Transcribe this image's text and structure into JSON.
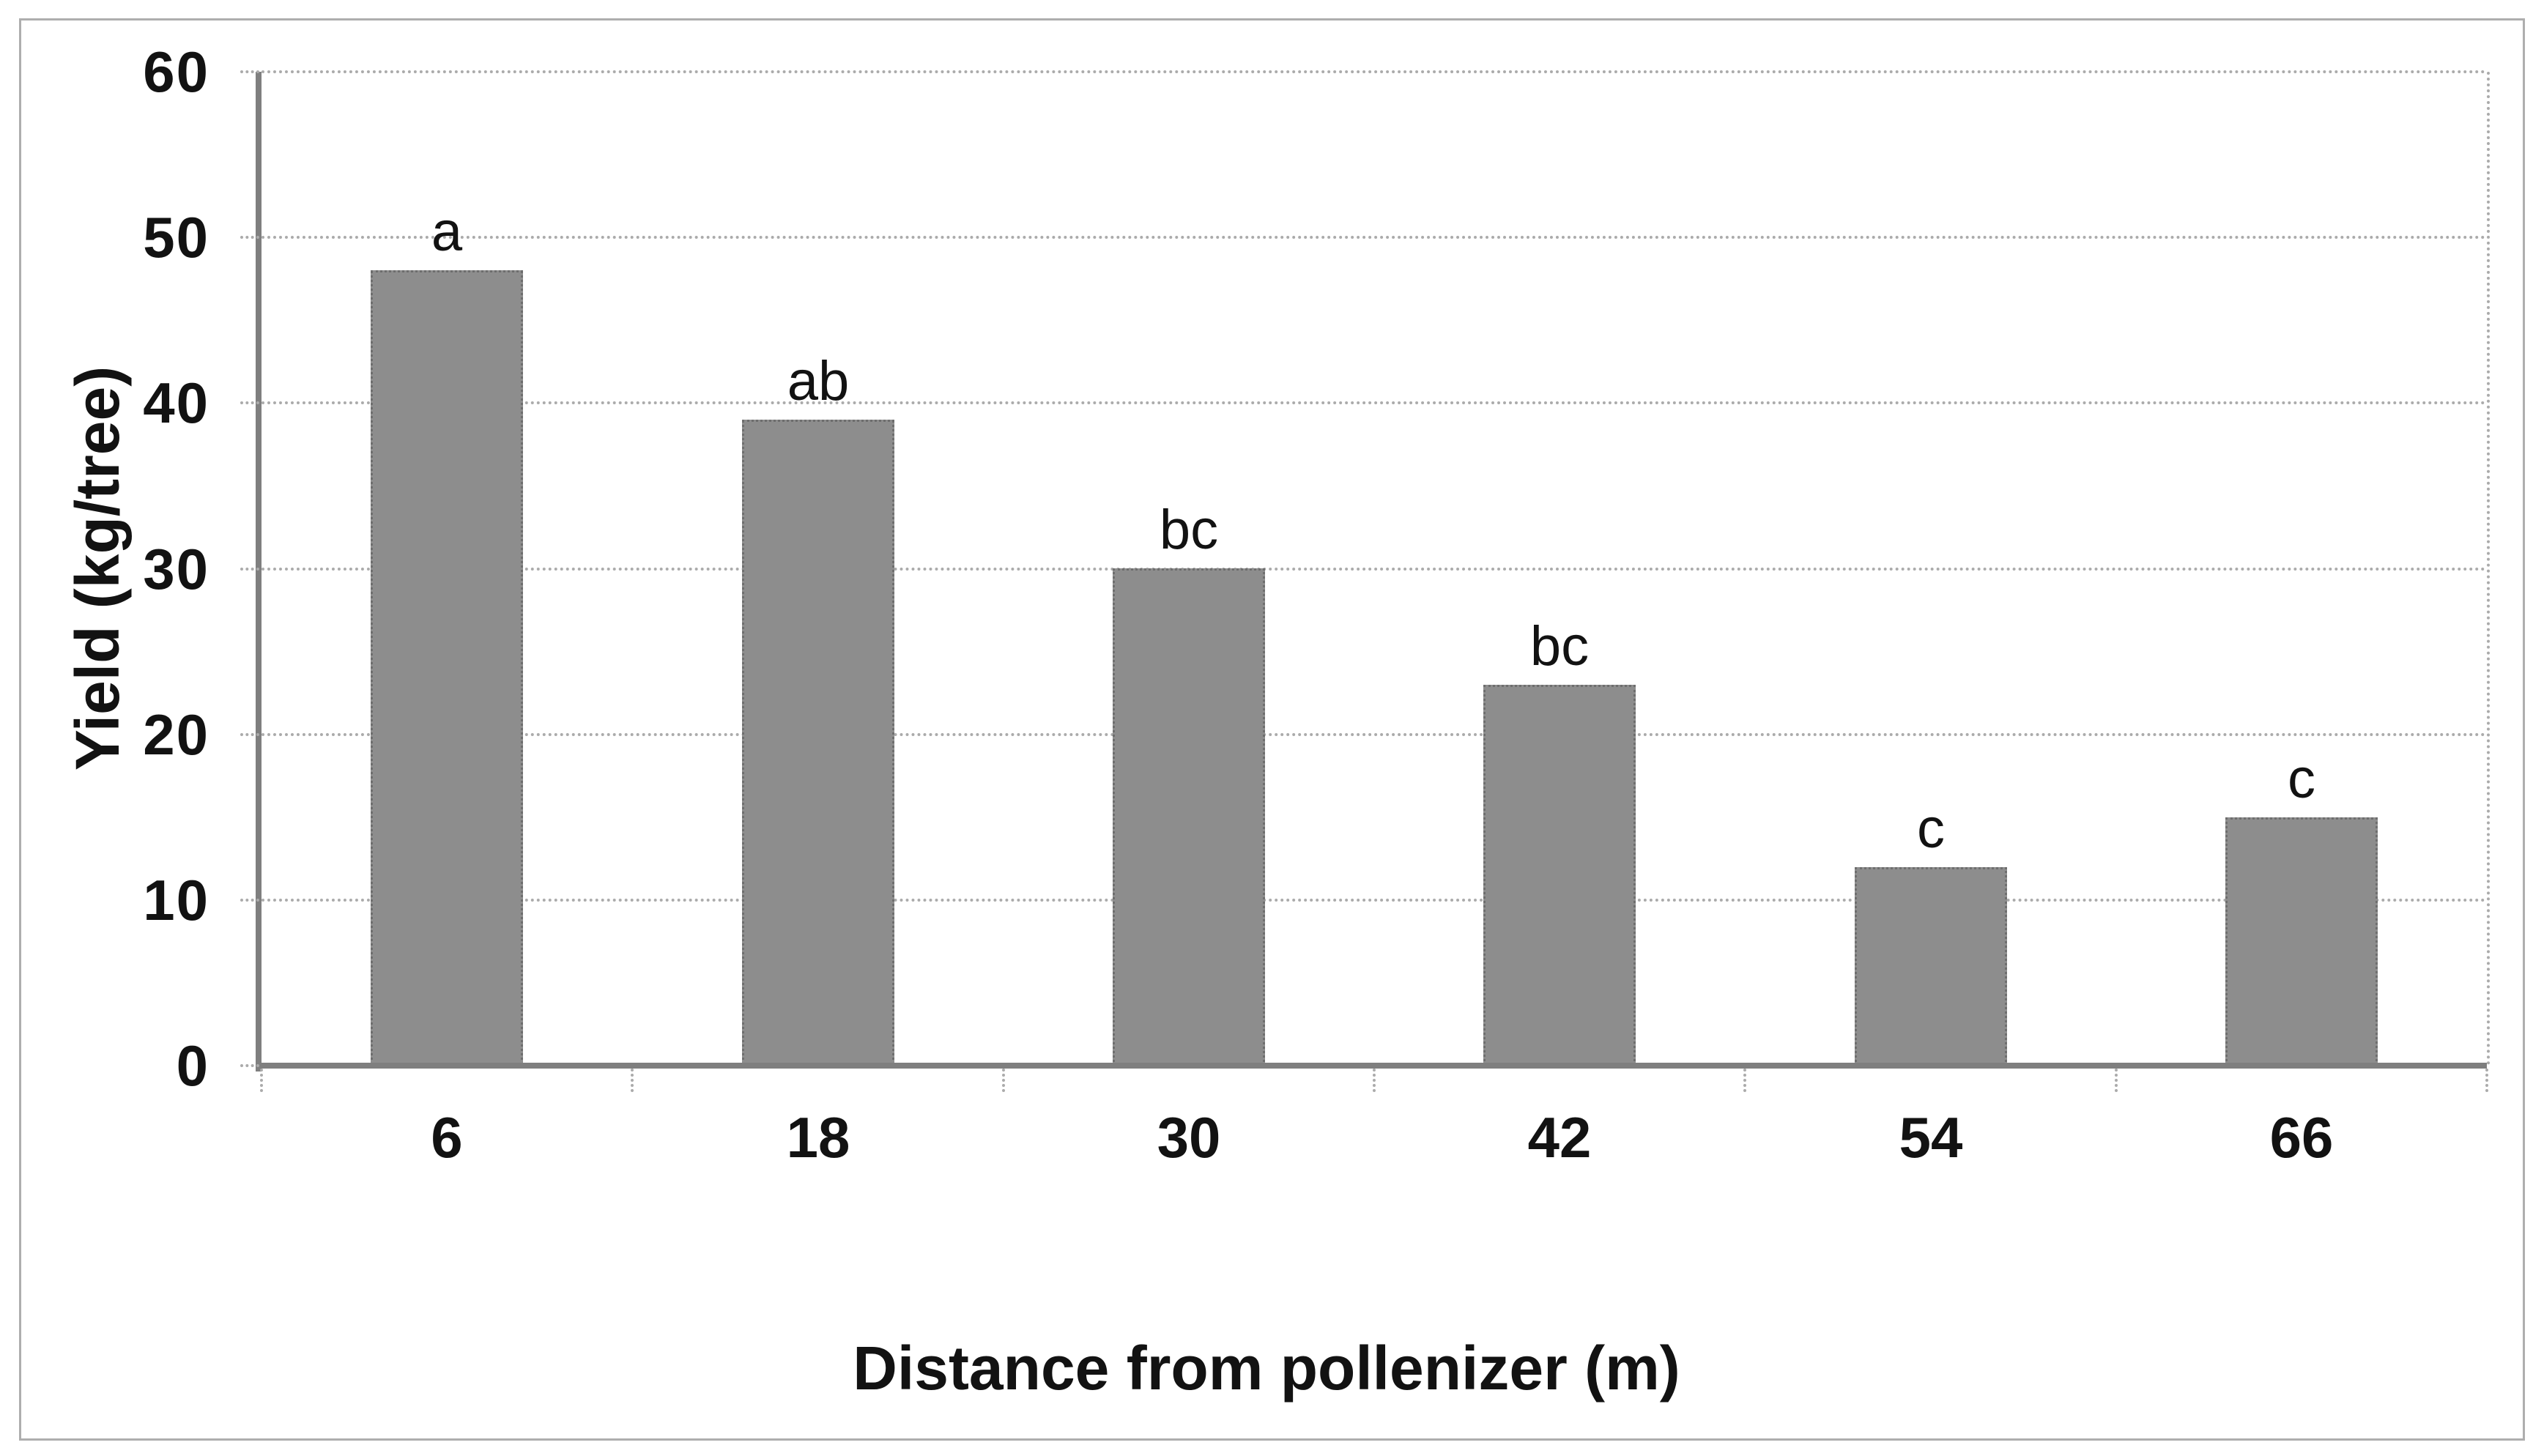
{
  "chart_data": {
    "type": "bar",
    "title": "",
    "xlabel": "Distance from pollenizer (m)",
    "ylabel": "Yield (kg/tree)",
    "categories": [
      "6",
      "18",
      "30",
      "42",
      "54",
      "66"
    ],
    "values": [
      48,
      39,
      30,
      23,
      12,
      15
    ],
    "bar_annotations": [
      "a",
      "ab",
      "bc",
      "bc",
      "c",
      "c"
    ],
    "ylim": [
      0,
      60
    ],
    "yticks": [
      0,
      10,
      20,
      30,
      40,
      50,
      60
    ],
    "grid": "horizontal dotted gridlines on",
    "legend_position": "none",
    "colors": {
      "bar_fill": "#8d8d8d",
      "bar_border": "#6e6e6e",
      "axis_line": "#7f7f7f",
      "gridline": "#ababab",
      "figure_frame": "#aeaeae",
      "text": "#121212",
      "background": "#ffffff"
    }
  }
}
